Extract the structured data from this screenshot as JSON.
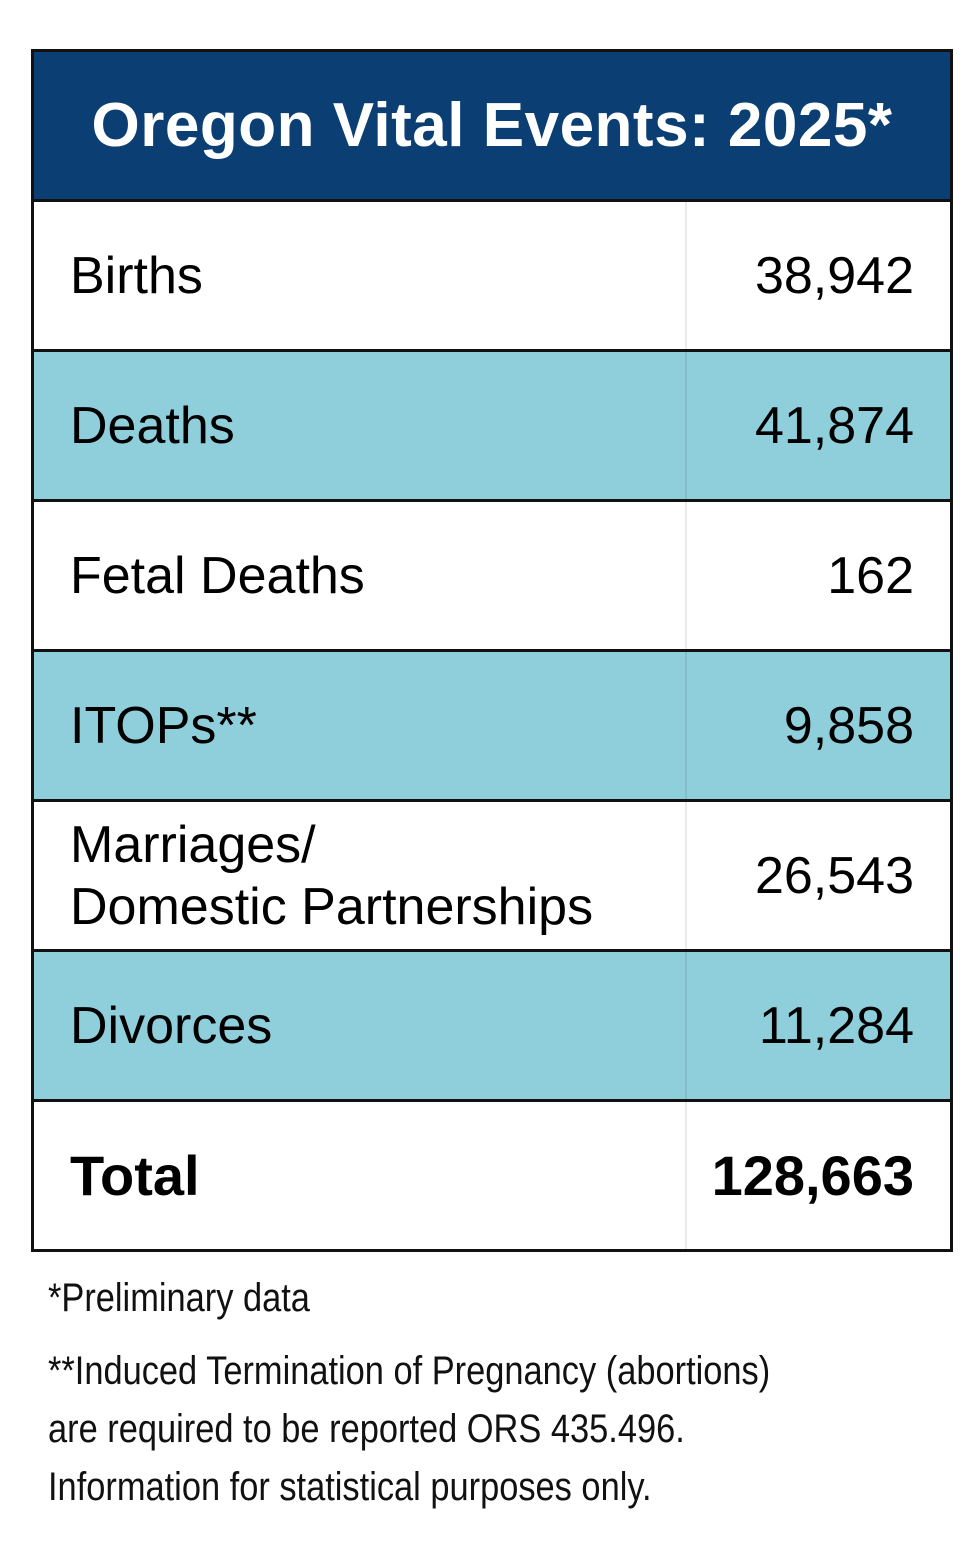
{
  "title": "Oregon Vital Events: 2025*",
  "colors": {
    "header_bg": "#0b3f74",
    "shaded_row": "#8fcfdb",
    "plain_row": "#ffffff",
    "border": "#111111"
  },
  "rows": [
    {
      "label": "Births",
      "value": "38,942"
    },
    {
      "label": "Deaths",
      "value": "41,874"
    },
    {
      "label": "Fetal Deaths",
      "value": "162"
    },
    {
      "label": "ITOPs**",
      "value": "9,858"
    },
    {
      "label_line1": "Marriages/",
      "label_line2": "Domestic Partnerships",
      "value": "26,543"
    },
    {
      "label": "Divorces",
      "value": "11,284"
    }
  ],
  "total": {
    "label": "Total",
    "value": "128,663"
  },
  "footnotes": {
    "preliminary": "*Preliminary data",
    "itop_line1": "**Induced Termination of Pregnancy (abortions)",
    "itop_line2": "are required to be reported ORS 435.496.",
    "itop_line3": "Information for statistical purposes only."
  }
}
